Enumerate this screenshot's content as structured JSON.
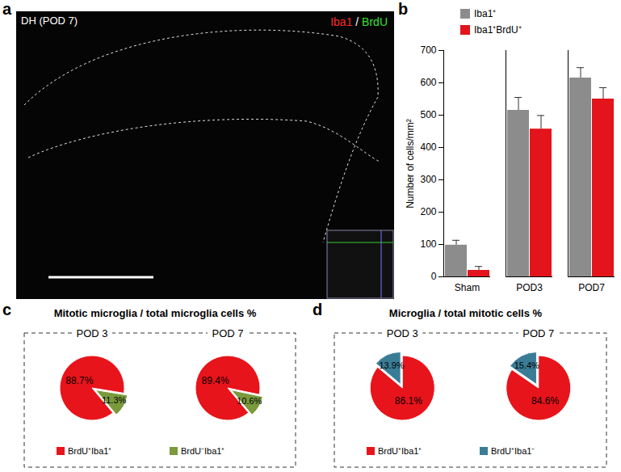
{
  "chart_data": [
    {
      "type": "image",
      "panel": "a",
      "title": "DH (POD 7)",
      "labels": [
        {
          "text": "Iba1",
          "color": "#ff2a2a"
        },
        {
          "text": " / ",
          "color": "#ffffff"
        },
        {
          "text": "BrdU",
          "color": "#33e033"
        }
      ]
    },
    {
      "type": "bar",
      "panel": "b",
      "categories": [
        "Sham",
        "POD3",
        "POD7"
      ],
      "series": [
        {
          "name": "Iba1⁺",
          "color": "#8c8c8c",
          "values": [
            98,
            515,
            615
          ],
          "errors": [
            15,
            40,
            32
          ]
        },
        {
          "name": "Iba1⁺BrdU⁺",
          "color": "#e3141b",
          "values": [
            20,
            457,
            550
          ],
          "errors": [
            12,
            42,
            35
          ]
        }
      ],
      "y_label": "Number of cells/mm²",
      "ylim": [
        0,
        700
      ],
      "yticks": [
        0,
        100,
        200,
        300,
        400,
        500,
        600,
        700
      ],
      "legend": "top-left"
    },
    {
      "type": "pie",
      "panel": "c",
      "title": "Mitotic microglia / total microglia cells %",
      "categories": [
        "BrdU⁺Iba1⁺",
        "BrdU⁻Iba1⁺"
      ],
      "colors": [
        "#e8141b",
        "#7a9a3c"
      ],
      "data_labels": true,
      "legend": "bottom",
      "pies": [
        {
          "title": "POD 3",
          "values": [
            88.7,
            11.3
          ],
          "value_labels": [
            "88.7%",
            "11.3%"
          ]
        },
        {
          "title": "POD 7",
          "values": [
            89.4,
            10.6
          ],
          "value_labels": [
            "89.4%",
            "10.6%"
          ]
        }
      ]
    },
    {
      "type": "pie",
      "panel": "d",
      "title": "Microglia / total mitotic cells %",
      "categories": [
        "BrdU⁺Iba1⁺",
        "BrdU⁺Iba1⁻"
      ],
      "colors": [
        "#e8141b",
        "#3a7c96"
      ],
      "data_labels": true,
      "legend": "bottom",
      "pies": [
        {
          "title": "POD 3",
          "values": [
            86.1,
            13.9
          ],
          "value_labels": [
            "86.1%",
            "13.9%"
          ]
        },
        {
          "title": "POD 7",
          "values": [
            84.6,
            15.4
          ],
          "value_labels": [
            "84.6%",
            "15.4%"
          ]
        }
      ]
    }
  ]
}
